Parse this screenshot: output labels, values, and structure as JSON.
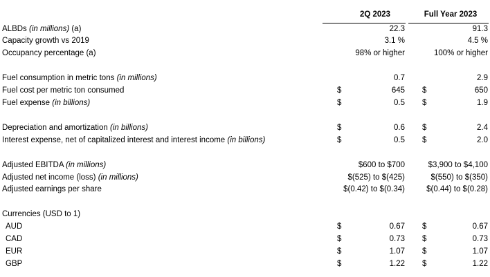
{
  "headers": {
    "q2": "2Q 2023",
    "fy": "Full Year 2023"
  },
  "rows": [
    {
      "label": "ALBDs",
      "note": "(in millions)",
      "suffix": " (a)",
      "q2_dollar": "",
      "q2": "22.3",
      "fy_dollar": "",
      "fy": "91.3"
    },
    {
      "label": "Capacity growth vs 2019",
      "note": "",
      "suffix": "",
      "q2_dollar": "",
      "q2": "3.1 %",
      "fy_dollar": "",
      "fy": "4.5 %"
    },
    {
      "label": "Occupancy percentage (a)",
      "note": "",
      "suffix": "",
      "q2_dollar": "",
      "q2": "98% or higher",
      "fy_dollar": "",
      "fy": "100% or higher"
    },
    {
      "label": "Fuel consumption in metric tons",
      "note": "(in millions)",
      "suffix": "",
      "q2_dollar": "",
      "q2": "0.7",
      "fy_dollar": "",
      "fy": "2.9"
    },
    {
      "label": "Fuel cost per metric ton consumed",
      "note": "",
      "suffix": "",
      "q2_dollar": "$",
      "q2": "645",
      "fy_dollar": "$",
      "fy": "650"
    },
    {
      "label": "Fuel expense",
      "note": "(in billions)",
      "suffix": "",
      "q2_dollar": "$",
      "q2": "0.5",
      "fy_dollar": "$",
      "fy": "1.9"
    },
    {
      "label": "Depreciation and amortization",
      "note": "(in billions)",
      "suffix": "",
      "q2_dollar": "$",
      "q2": "0.6",
      "fy_dollar": "$",
      "fy": "2.4"
    },
    {
      "label": "Interest expense, net of capitalized interest and interest income",
      "note": "(in billions)",
      "suffix": "",
      "q2_dollar": "$",
      "q2": "0.5",
      "fy_dollar": "$",
      "fy": "2.0"
    },
    {
      "label": "Adjusted EBITDA",
      "note": "(in millions)",
      "suffix": "",
      "q2_dollar": "",
      "q2": "$600 to $700",
      "fy_dollar": "",
      "fy": "$3,900 to $4,100"
    },
    {
      "label": "Adjusted net income (loss)",
      "note": "(in millions)",
      "suffix": "",
      "q2_dollar": "",
      "q2": "$(525) to $(425)",
      "fy_dollar": "",
      "fy": "$(550) to $(350)"
    },
    {
      "label": "Adjusted earnings per share",
      "note": "",
      "suffix": "",
      "q2_dollar": "",
      "q2": "$(0.42) to $(0.34)",
      "fy_dollar": "",
      "fy": "$(0.44) to $(0.28)"
    },
    {
      "label": "Currencies (USD to 1)",
      "note": "",
      "suffix": "",
      "q2_dollar": "",
      "q2": "",
      "fy_dollar": "",
      "fy": ""
    },
    {
      "label": "AUD",
      "note": "",
      "suffix": "",
      "q2_dollar": "$",
      "q2": "0.67",
      "fy_dollar": "$",
      "fy": "0.67"
    },
    {
      "label": "CAD",
      "note": "",
      "suffix": "",
      "q2_dollar": "$",
      "q2": "0.73",
      "fy_dollar": "$",
      "fy": "0.73"
    },
    {
      "label": "EUR",
      "note": "",
      "suffix": "",
      "q2_dollar": "$",
      "q2": "1.07",
      "fy_dollar": "$",
      "fy": "1.07"
    },
    {
      "label": "GBP",
      "note": "",
      "suffix": "",
      "q2_dollar": "$",
      "q2": "1.22",
      "fy_dollar": "$",
      "fy": "1.22"
    }
  ]
}
